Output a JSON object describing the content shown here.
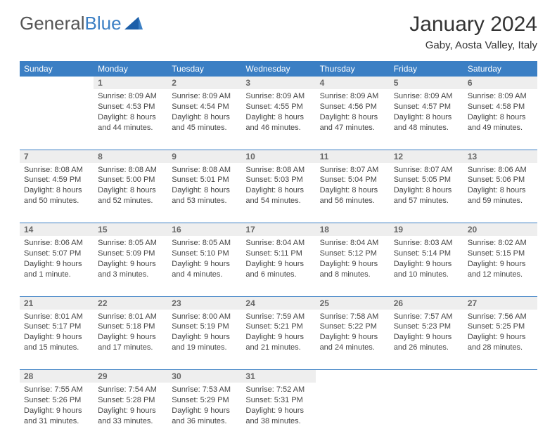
{
  "logo": {
    "word1": "General",
    "word2": "Blue"
  },
  "title": {
    "month": "January 2024",
    "location": "Gaby, Aosta Valley, Italy"
  },
  "colors": {
    "header_bg": "#3b7fc4",
    "header_fg": "#ffffff",
    "daynum_bg": "#eeeeee",
    "daynum_fg": "#666666",
    "border": "#3b7fc4",
    "text": "#444444",
    "page_bg": "#ffffff"
  },
  "weekdays": [
    "Sunday",
    "Monday",
    "Tuesday",
    "Wednesday",
    "Thursday",
    "Friday",
    "Saturday"
  ],
  "grid": {
    "first_weekday_index": 1,
    "days_in_month": 31
  },
  "days": {
    "1": {
      "sunrise": "8:09 AM",
      "sunset": "4:53 PM",
      "daylight": "8 hours and 44 minutes."
    },
    "2": {
      "sunrise": "8:09 AM",
      "sunset": "4:54 PM",
      "daylight": "8 hours and 45 minutes."
    },
    "3": {
      "sunrise": "8:09 AM",
      "sunset": "4:55 PM",
      "daylight": "8 hours and 46 minutes."
    },
    "4": {
      "sunrise": "8:09 AM",
      "sunset": "4:56 PM",
      "daylight": "8 hours and 47 minutes."
    },
    "5": {
      "sunrise": "8:09 AM",
      "sunset": "4:57 PM",
      "daylight": "8 hours and 48 minutes."
    },
    "6": {
      "sunrise": "8:09 AM",
      "sunset": "4:58 PM",
      "daylight": "8 hours and 49 minutes."
    },
    "7": {
      "sunrise": "8:08 AM",
      "sunset": "4:59 PM",
      "daylight": "8 hours and 50 minutes."
    },
    "8": {
      "sunrise": "8:08 AM",
      "sunset": "5:00 PM",
      "daylight": "8 hours and 52 minutes."
    },
    "9": {
      "sunrise": "8:08 AM",
      "sunset": "5:01 PM",
      "daylight": "8 hours and 53 minutes."
    },
    "10": {
      "sunrise": "8:08 AM",
      "sunset": "5:03 PM",
      "daylight": "8 hours and 54 minutes."
    },
    "11": {
      "sunrise": "8:07 AM",
      "sunset": "5:04 PM",
      "daylight": "8 hours and 56 minutes."
    },
    "12": {
      "sunrise": "8:07 AM",
      "sunset": "5:05 PM",
      "daylight": "8 hours and 57 minutes."
    },
    "13": {
      "sunrise": "8:06 AM",
      "sunset": "5:06 PM",
      "daylight": "8 hours and 59 minutes."
    },
    "14": {
      "sunrise": "8:06 AM",
      "sunset": "5:07 PM",
      "daylight": "9 hours and 1 minute."
    },
    "15": {
      "sunrise": "8:05 AM",
      "sunset": "5:09 PM",
      "daylight": "9 hours and 3 minutes."
    },
    "16": {
      "sunrise": "8:05 AM",
      "sunset": "5:10 PM",
      "daylight": "9 hours and 4 minutes."
    },
    "17": {
      "sunrise": "8:04 AM",
      "sunset": "5:11 PM",
      "daylight": "9 hours and 6 minutes."
    },
    "18": {
      "sunrise": "8:04 AM",
      "sunset": "5:12 PM",
      "daylight": "9 hours and 8 minutes."
    },
    "19": {
      "sunrise": "8:03 AM",
      "sunset": "5:14 PM",
      "daylight": "9 hours and 10 minutes."
    },
    "20": {
      "sunrise": "8:02 AM",
      "sunset": "5:15 PM",
      "daylight": "9 hours and 12 minutes."
    },
    "21": {
      "sunrise": "8:01 AM",
      "sunset": "5:17 PM",
      "daylight": "9 hours and 15 minutes."
    },
    "22": {
      "sunrise": "8:01 AM",
      "sunset": "5:18 PM",
      "daylight": "9 hours and 17 minutes."
    },
    "23": {
      "sunrise": "8:00 AM",
      "sunset": "5:19 PM",
      "daylight": "9 hours and 19 minutes."
    },
    "24": {
      "sunrise": "7:59 AM",
      "sunset": "5:21 PM",
      "daylight": "9 hours and 21 minutes."
    },
    "25": {
      "sunrise": "7:58 AM",
      "sunset": "5:22 PM",
      "daylight": "9 hours and 24 minutes."
    },
    "26": {
      "sunrise": "7:57 AM",
      "sunset": "5:23 PM",
      "daylight": "9 hours and 26 minutes."
    },
    "27": {
      "sunrise": "7:56 AM",
      "sunset": "5:25 PM",
      "daylight": "9 hours and 28 minutes."
    },
    "28": {
      "sunrise": "7:55 AM",
      "sunset": "5:26 PM",
      "daylight": "9 hours and 31 minutes."
    },
    "29": {
      "sunrise": "7:54 AM",
      "sunset": "5:28 PM",
      "daylight": "9 hours and 33 minutes."
    },
    "30": {
      "sunrise": "7:53 AM",
      "sunset": "5:29 PM",
      "daylight": "9 hours and 36 minutes."
    },
    "31": {
      "sunrise": "7:52 AM",
      "sunset": "5:31 PM",
      "daylight": "9 hours and 38 minutes."
    }
  },
  "labels": {
    "sunrise": "Sunrise:",
    "sunset": "Sunset:",
    "daylight": "Daylight:"
  }
}
